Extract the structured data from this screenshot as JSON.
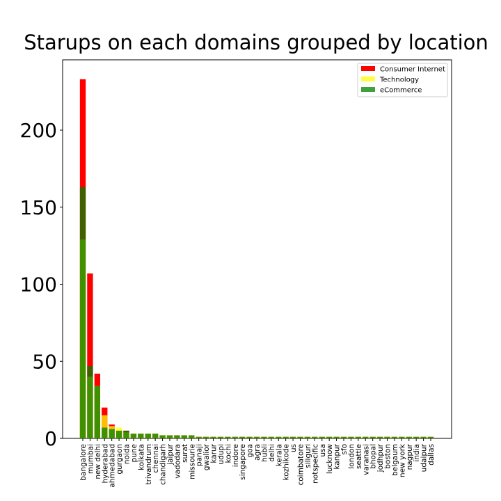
{
  "chart_data": {
    "type": "bar",
    "title": "Starups on each domains grouped by location",
    "categories": [
      "bangalore",
      "mumbai",
      "new delhi",
      "hyderabad",
      "ahmedabad",
      "gurgaon",
      "noida",
      "pune",
      "kolkata",
      "trivandrum",
      "chennai",
      "chandigarh",
      "jaipur",
      "vadodara",
      "surat",
      "missourie",
      "panaji",
      "gwalior",
      "karur",
      "udupi",
      "kochi",
      "indore",
      "singapore",
      "goa",
      "agra",
      "hubli",
      "delhi",
      "kerala",
      "kozhikode",
      "us",
      "coimbatore",
      "siliguri",
      "notspecific",
      "usa",
      "lucknow",
      "kanpur",
      "sfo",
      "london",
      "seattle",
      "varanasi",
      "bhopal",
      "jodhpur",
      "boston",
      "belgaum",
      "new york",
      "nagpur",
      "india",
      "udaipur",
      "dallas"
    ],
    "series": [
      {
        "name": "Consumer Internet",
        "color": "#ff0000",
        "alpha": 1,
        "values": [
          233,
          107,
          42,
          20,
          9,
          5,
          5,
          3,
          3,
          3,
          3,
          2,
          2,
          2,
          2,
          2,
          1,
          1,
          1,
          1,
          1,
          1,
          1,
          1,
          1,
          1,
          1,
          1,
          1,
          1,
          1,
          1,
          1,
          1,
          1,
          1,
          1,
          1,
          1,
          1,
          1,
          1,
          1,
          1,
          1,
          1,
          1,
          1,
          1
        ]
      },
      {
        "name": "Technology",
        "color": "#ffff00",
        "alpha": 0.75,
        "values": [
          129,
          40,
          34,
          15,
          8,
          7,
          4,
          3,
          3,
          3,
          3,
          2,
          2,
          2,
          2,
          2,
          1,
          1,
          1,
          1,
          1,
          1,
          1,
          1,
          1,
          1,
          1,
          1,
          1,
          1,
          1,
          1,
          1,
          1,
          1,
          1,
          1,
          1,
          1,
          1,
          1,
          1,
          1,
          1,
          1,
          1,
          1,
          1,
          1
        ]
      },
      {
        "name": "eCommerce",
        "color": "#008000",
        "alpha": 0.75,
        "values": [
          163,
          47,
          34,
          7,
          6,
          5,
          5,
          3,
          3,
          3,
          3,
          2,
          2,
          2,
          2,
          2,
          1,
          1,
          1,
          1,
          1,
          1,
          1,
          1,
          1,
          1,
          1,
          1,
          1,
          1,
          1,
          1,
          1,
          1,
          1,
          1,
          1,
          1,
          1,
          1,
          1,
          1,
          1,
          1,
          1,
          1,
          1,
          1,
          1
        ]
      }
    ],
    "ylim": [
      0,
      245.6
    ],
    "yticks": [
      0,
      50,
      100,
      150,
      200
    ],
    "legend": "upper right"
  }
}
